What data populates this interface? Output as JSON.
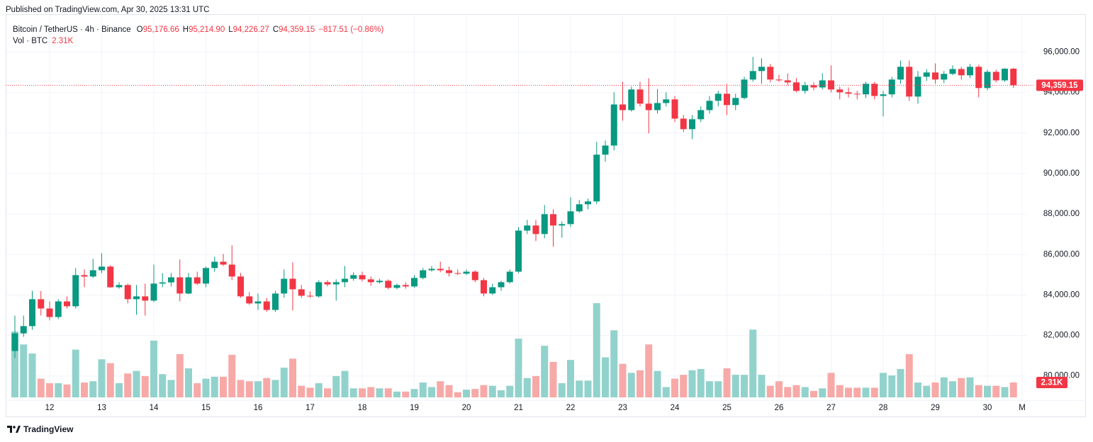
{
  "published": "Published on TradingView.com, Apr 30, 2025 13:31 UTC",
  "footer": {
    "brand": "TradingView"
  },
  "chart_data": {
    "type": "candlestick",
    "title": "Bitcoin / TetherUS · 4h · Binance",
    "legend": [
      {
        "label": "O",
        "value": "95,176.66"
      },
      {
        "label": "H",
        "value": "95,214.90"
      },
      {
        "label": "L",
        "value": "94,226.27"
      },
      {
        "label": "C",
        "value": "94,359.15"
      }
    ],
    "change": "−817.51 (−0.86%)",
    "categories": [
      null,
      null,
      null,
      null,
      "12",
      null,
      null,
      null,
      null,
      null,
      "13",
      null,
      null,
      null,
      null,
      null,
      "14",
      null,
      null,
      null,
      null,
      null,
      "15",
      null,
      null,
      null,
      null,
      null,
      "16",
      null,
      null,
      null,
      null,
      null,
      "17",
      null,
      null,
      null,
      null,
      null,
      "18",
      null,
      null,
      null,
      null,
      null,
      "19",
      null,
      null,
      null,
      null,
      null,
      "20",
      null,
      null,
      null,
      null,
      null,
      "21",
      null,
      null,
      null,
      null,
      null,
      "22",
      null,
      null,
      null,
      null,
      null,
      "23",
      null,
      null,
      null,
      null,
      null,
      "24",
      null,
      null,
      null,
      null,
      null,
      "25",
      null,
      null,
      null,
      null,
      null,
      "26",
      null,
      null,
      null,
      null,
      null,
      "27",
      null,
      null,
      null,
      null,
      null,
      "28",
      null,
      null,
      null,
      null,
      null,
      "29",
      null,
      null,
      null,
      null,
      null,
      "30",
      null,
      null,
      null,
      "M"
    ],
    "open": [
      81230,
      82100,
      82460,
      83790,
      83330,
      82910,
      83680,
      83440,
      84980,
      84910,
      85220,
      85400,
      84380,
      84490,
      83790,
      83930,
      83720,
      84560,
      84620,
      84870,
      84070,
      84870,
      84560,
      85330,
      85640,
      85500,
      84910,
      83930,
      83580,
      83680,
      83260,
      84070,
      84800,
      84280,
      83960,
      83930,
      84630,
      84520,
      84630,
      84800,
      84980,
      84770,
      84630,
      84700,
      84350,
      84490,
      84420,
      84840,
      85220,
      85290,
      85220,
      85080,
      85050,
      85150,
      84730,
      84070,
      84380,
      84630,
      85150,
      87180,
      87430,
      87010,
      87990,
      87430,
      87500,
      88130,
      88480,
      88620,
      90930,
      91380,
      93410,
      93130,
      94150,
      93450,
      93130,
      93480,
      93660,
      92710,
      92190,
      92680,
      93130,
      93590,
      93940,
      93380,
      93730,
      94640,
      95060,
      95270,
      94640,
      94600,
      94500,
      94080,
      94360,
      94250,
      94600,
      94150,
      94010,
      93940,
      93910,
      94430,
      93830,
      93910,
      94640,
      95270,
      93800,
      94780,
      94990,
      94640,
      94920,
      95160,
      94850,
      95270,
      94220,
      95020,
      94600,
      95176.66,
      null
    ],
    "high": [
      82980,
      82980,
      84200,
      84200,
      83680,
      83790,
      83930,
      85330,
      85260,
      85780,
      86060,
      85470,
      84630,
      84560,
      84490,
      84560,
      85500,
      85080,
      85080,
      85750,
      85080,
      85150,
      85400,
      85890,
      86030,
      86450,
      85080,
      84140,
      84070,
      83860,
      84200,
      85260,
      85610,
      84490,
      84170,
      84730,
      84730,
      84770,
      85430,
      85120,
      85150,
      84910,
      84800,
      84770,
      84560,
      84630,
      84980,
      85330,
      85430,
      85640,
      85400,
      85260,
      85260,
      85220,
      84840,
      84560,
      84700,
      85260,
      87360,
      87710,
      87710,
      88440,
      88230,
      87640,
      88830,
      88690,
      88760,
      91560,
      91630,
      94010,
      94530,
      94290,
      94530,
      94710,
      94180,
      94010,
      93830,
      92890,
      92890,
      93310,
      93830,
      94080,
      94430,
      93940,
      94780,
      95760,
      95690,
      95410,
      94880,
      94950,
      94710,
      94530,
      94500,
      94950,
      95340,
      94290,
      94250,
      94080,
      94530,
      94530,
      94080,
      94780,
      95580,
      95580,
      95060,
      95160,
      95440,
      95060,
      95340,
      95270,
      95410,
      95370,
      95130,
      95130,
      95200,
      95214.9,
      null
    ],
    "low": [
      80880,
      81930,
      82280,
      82980,
      82740,
      82810,
      83330,
      83330,
      84380,
      84840,
      85080,
      84350,
      84310,
      83580,
      83020,
      82980,
      83650,
      84380,
      84420,
      83680,
      84030,
      84490,
      84380,
      85150,
      85430,
      84730,
      83860,
      83510,
      83260,
      83160,
      83160,
      83860,
      83230,
      83860,
      83860,
      83860,
      84420,
      83720,
      84380,
      84700,
      84660,
      84450,
      84560,
      84280,
      84280,
      84310,
      84350,
      84770,
      85150,
      85120,
      84910,
      84980,
      84980,
      84630,
      83930,
      84000,
      84200,
      84560,
      85080,
      87010,
      86660,
      86800,
      86380,
      86830,
      87360,
      88060,
      88230,
      88480,
      90580,
      91140,
      92610,
      93060,
      93310,
      91980,
      92960,
      93310,
      92540,
      92050,
      91700,
      92540,
      92960,
      93310,
      92890,
      93130,
      93660,
      94530,
      94430,
      94500,
      94530,
      94360,
      94010,
      93940,
      94110,
      94150,
      94010,
      93660,
      93760,
      93660,
      93730,
      93660,
      92820,
      93760,
      94430,
      93590,
      93450,
      94570,
      94430,
      94460,
      94850,
      94640,
      94710,
      93760,
      94110,
      94500,
      94530,
      94226.27,
      null
    ],
    "close": [
      82100,
      82460,
      83790,
      83330,
      82910,
      83680,
      83440,
      84980,
      84910,
      85220,
      85400,
      84380,
      84490,
      83790,
      83930,
      83720,
      84560,
      84620,
      84870,
      84070,
      84870,
      84560,
      85330,
      85640,
      85500,
      84910,
      83930,
      83580,
      83680,
      83260,
      84070,
      84800,
      84280,
      83960,
      83930,
      84630,
      84520,
      84630,
      84800,
      84980,
      84770,
      84630,
      84700,
      84350,
      84490,
      84420,
      84840,
      85220,
      85290,
      85220,
      85080,
      85050,
      85150,
      84730,
      84070,
      84380,
      84630,
      85150,
      87180,
      87430,
      87010,
      87990,
      87430,
      87500,
      88130,
      88480,
      88620,
      90930,
      91380,
      93410,
      93130,
      94150,
      93450,
      93130,
      93480,
      93660,
      92710,
      92190,
      92680,
      93130,
      93590,
      93940,
      93380,
      93730,
      94640,
      95060,
      95270,
      94640,
      94600,
      94500,
      94080,
      94360,
      94250,
      94600,
      94150,
      94010,
      93940,
      93910,
      94430,
      93830,
      93910,
      94640,
      95270,
      93800,
      94780,
      94990,
      94640,
      94920,
      95160,
      94850,
      95270,
      94220,
      95020,
      94600,
      95176.66,
      94359.15,
      null
    ],
    "up_color": "#089981",
    "down_color": "#f23645",
    "volume": {
      "name": "Vol · BTC",
      "values": [
        10200,
        8200,
        6800,
        2900,
        2200,
        2200,
        2000,
        7400,
        2300,
        2500,
        5900,
        5300,
        2200,
        3700,
        4100,
        3300,
        8800,
        3600,
        2700,
        6700,
        4500,
        2200,
        2900,
        3200,
        3200,
        6600,
        2700,
        2500,
        2500,
        3000,
        2700,
        4600,
        6000,
        1800,
        1500,
        2200,
        1400,
        3300,
        4100,
        1400,
        1400,
        1600,
        1400,
        1400,
        900,
        900,
        1300,
        2300,
        1600,
        2500,
        1900,
        800,
        1200,
        1300,
        1900,
        1800,
        1100,
        1800,
        9100,
        3000,
        3300,
        8000,
        5500,
        2200,
        5800,
        2600,
        2600,
        14600,
        6200,
        10400,
        5200,
        3800,
        4200,
        8200,
        4100,
        1600,
        2900,
        3500,
        4200,
        4400,
        2500,
        2500,
        4500,
        3500,
        3500,
        10500,
        3500,
        1800,
        2500,
        1600,
        1900,
        1600,
        1000,
        1400,
        3800,
        1900,
        1500,
        1500,
        1500,
        1500,
        3800,
        3400,
        4400,
        6700,
        2300,
        1800,
        2300,
        3100,
        2500,
        3000,
        3100,
        1900,
        1800,
        1800,
        1600,
        2310,
        null
      ],
      "last_label": "2.31K",
      "up_color": "#92d2cc",
      "down_color": "#f7a9a7"
    },
    "last_price_label": "94,359.15",
    "ylim": [
      78800,
      97800
    ],
    "yticks": [
      {
        "value": 80000,
        "label": "80,000.00"
      },
      {
        "value": 82000,
        "label": "82,000.00"
      },
      {
        "value": 84000,
        "label": "84,000.00"
      },
      {
        "value": 86000,
        "label": "86,000.00"
      },
      {
        "value": 88000,
        "label": "88,000.00"
      },
      {
        "value": 90000,
        "label": "90,000.00"
      },
      {
        "value": 92000,
        "label": "92,000.00"
      },
      {
        "value": 94000,
        "label": "94,000.00"
      },
      {
        "value": 96000,
        "label": "96,000.00"
      }
    ],
    "grid": true
  }
}
